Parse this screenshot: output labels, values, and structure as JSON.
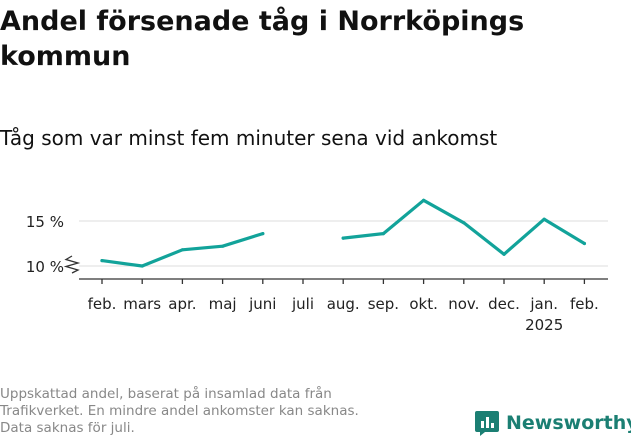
{
  "title": "Andel försenade tåg i Norrköpings kommun",
  "subtitle": "Tåg som var minst fem minuter sena vid ankomst",
  "footnote": {
    "line1": "Uppskattad andel, baserat på insamlad data från",
    "line2": "Trafikverket. En mindre andel ankomster kan saknas.",
    "line3": "Data saknas för juli."
  },
  "logo": {
    "text": "Newsworthy",
    "icon": "bar-chart-icon"
  },
  "colors": {
    "line": "#12a39a",
    "brand": "#1b7f73",
    "grid": "#dddddd",
    "axis": "#333333"
  },
  "chart_data": {
    "type": "line",
    "title": "Andel försenade tåg i Norrköpings kommun",
    "subtitle": "Tåg som var minst fem minuter sena vid ankomst",
    "categories": [
      "feb.",
      "mars",
      "apr.",
      "maj",
      "juni",
      "juli",
      "aug.",
      "sep.",
      "okt.",
      "nov.",
      "dec.",
      "jan.",
      "feb."
    ],
    "year_label": {
      "category_index": 11,
      "text": "2025"
    },
    "series": [
      {
        "values": [
          10.6,
          10.0,
          11.8,
          12.2,
          13.6,
          null,
          13.1,
          13.6,
          17.3,
          14.8,
          11.3,
          15.2,
          12.5
        ]
      }
    ],
    "y_ticks": [
      10,
      15
    ],
    "y_tick_labels": [
      "10 %",
      "15 %"
    ],
    "ylim": [
      9.5,
      17.5
    ],
    "axis_break": true,
    "grid": true,
    "legend": "none"
  }
}
